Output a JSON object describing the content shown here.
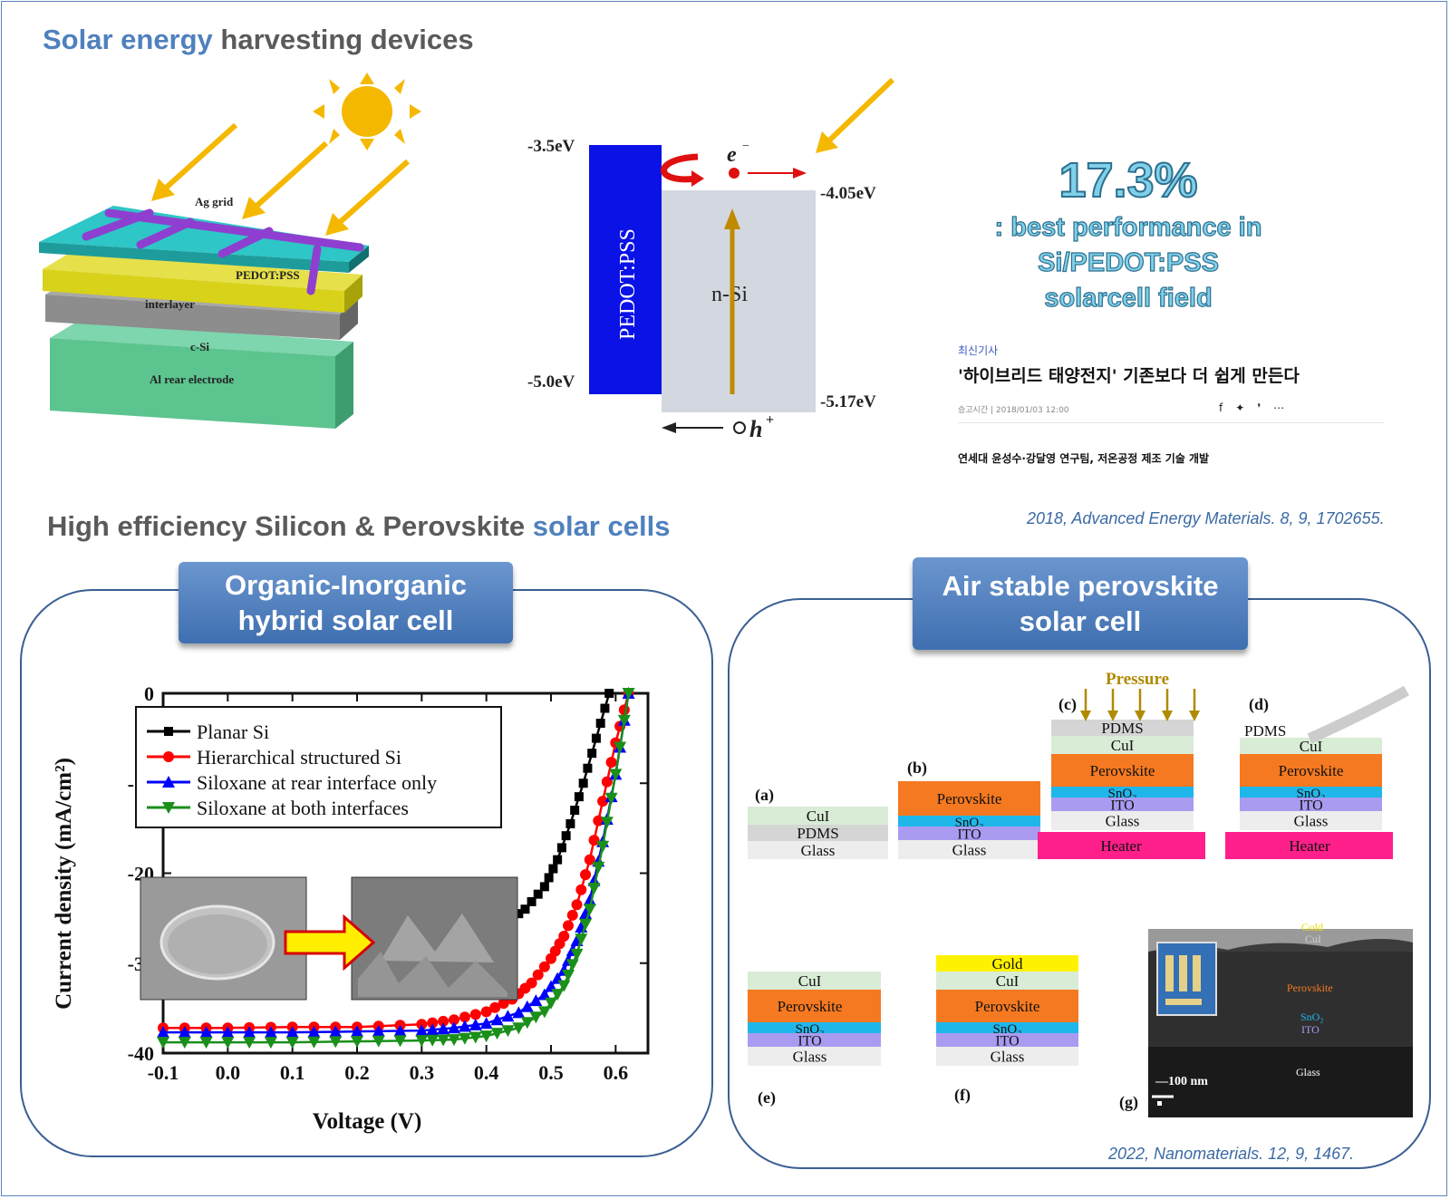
{
  "header": {
    "title_accent": "Solar energy",
    "title_rest": " harvesting devices"
  },
  "device": {
    "ag_grid": "Ag grid",
    "pedot": "PEDOT:PSS",
    "interlayer": "interlayer",
    "csi": "c-Si",
    "rear": "Al rear electrode",
    "colors": {
      "pedot": "#2ec6c6",
      "interlayer": "#d8d21a",
      "csi": "#8d8d8d",
      "rear": "#5cc48f",
      "grid": "#8e3fd0",
      "sun": "#f5b800"
    }
  },
  "band": {
    "pedot_label": "PEDOT:PSS",
    "nsi_label": "n-Si",
    "e_label": "e",
    "h_label": "h",
    "lvl1": "-3.5eV",
    "lvl2": "-5.0eV",
    "lvl3": "-4.05eV",
    "lvl4": "-5.17eV"
  },
  "highlight": {
    "pct": "17.3%",
    "line1": ": best performance in",
    "line2": "Si/PEDOT:PSS",
    "line3": "solarcell field"
  },
  "news": {
    "tag": "최신기사",
    "headline": "'하이브리드 태양전지' 기존보다 더 쉽게 만든다",
    "meta": "승고시간 | 2018/01/03 12:00",
    "sub": "연세대 윤성수·강달영 연구팀, 저온공정 제조 기술 개발"
  },
  "refs": {
    "ref1": "2018, Advanced Energy Materials. 8, 9, 1702655.",
    "ref2": "2022, Nanomaterials. 12, 9, 1467."
  },
  "section2": {
    "title_rest": "High efficiency Silicon & Perovskite ",
    "title_accent": "solar cells"
  },
  "panels": {
    "left_tab_line1": "Organic-Inorganic",
    "left_tab_line2": "hybrid solar cell",
    "right_tab_line1": "Air stable perovskite",
    "right_tab_line2": "solar cell"
  },
  "chart_data": {
    "type": "line",
    "xlabel": "Voltage (V)",
    "ylabel": "Current density (mA/cm²)",
    "xlim": [
      -0.1,
      0.65
    ],
    "ylim": [
      -40,
      0
    ],
    "x_ticks": [
      "-0.1",
      "0.0",
      "0.1",
      "0.2",
      "0.3",
      "0.4",
      "0.5",
      "0.6"
    ],
    "y_ticks": [
      "0",
      "-10",
      "-20",
      "-30",
      "-40"
    ],
    "legend_position": "top-left",
    "series": [
      {
        "name": "Planar Si",
        "color": "#000000",
        "marker": "square",
        "x": [
          -0.1,
          0.0,
          0.1,
          0.2,
          0.3,
          0.35,
          0.4,
          0.43,
          0.46,
          0.49,
          0.51,
          0.53,
          0.55,
          0.57,
          0.59
        ],
        "y": [
          -28,
          -28,
          -28,
          -28.1,
          -27.9,
          -27.5,
          -26.6,
          -25.5,
          -24,
          -21.5,
          -18.5,
          -14.5,
          -10,
          -5,
          0
        ]
      },
      {
        "name": "Hierarchical structured Si",
        "color": "#ff0000",
        "marker": "circle",
        "x": [
          -0.1,
          0.0,
          0.1,
          0.2,
          0.3,
          0.35,
          0.4,
          0.44,
          0.47,
          0.5,
          0.52,
          0.54,
          0.56,
          0.58,
          0.6,
          0.62
        ],
        "y": [
          -37.2,
          -37.2,
          -37.1,
          -37.1,
          -36.8,
          -36.3,
          -35.4,
          -34,
          -32.2,
          -29.5,
          -27,
          -23.5,
          -18.5,
          -12,
          -5.5,
          0
        ]
      },
      {
        "name": "Siloxane at rear interface only",
        "color": "#0000ff",
        "marker": "triangle-up",
        "x": [
          -0.1,
          0.0,
          0.1,
          0.2,
          0.3,
          0.35,
          0.4,
          0.45,
          0.49,
          0.52,
          0.54,
          0.56,
          0.58,
          0.6,
          0.62
        ],
        "y": [
          -37.7,
          -37.7,
          -37.7,
          -37.6,
          -37.5,
          -37.2,
          -36.7,
          -35.5,
          -33.5,
          -30.8,
          -27.5,
          -23,
          -16.5,
          -9,
          0
        ]
      },
      {
        "name": "Siloxane at both interfaces",
        "color": "#1a8f1a",
        "marker": "triangle-down",
        "x": [
          -0.1,
          0.0,
          0.1,
          0.2,
          0.3,
          0.35,
          0.4,
          0.45,
          0.49,
          0.52,
          0.54,
          0.56,
          0.58,
          0.6,
          0.62
        ],
        "y": [
          -38.8,
          -38.8,
          -38.8,
          -38.7,
          -38.6,
          -38.5,
          -38.1,
          -37.2,
          -35.4,
          -32.5,
          -29,
          -24,
          -17,
          -9,
          0
        ]
      }
    ]
  },
  "perovskite": {
    "a": "(a)",
    "b": "(b)",
    "c": "(c)",
    "d": "(d)",
    "e": "(e)",
    "f": "(f)",
    "g": "(g)",
    "pressure": "Pressure",
    "cui": "CuI",
    "pdms": "PDMS",
    "glass": "Glass",
    "perov": "Perovskite",
    "sno2": "SnO₂",
    "ito": "ITO",
    "heater": "Heater",
    "gold": "Gold",
    "scale": "100 nm",
    "sem_gold": "Gold",
    "sem_cui": "CuI",
    "sem_perov": "Perovskite",
    "sem_sno2": "SnO₂",
    "sem_ito": "ITO",
    "sem_glass": "Glass",
    "colors": {
      "cui": "#d9ecd6",
      "pdms": "#d5d5d5",
      "glass": "#ededed",
      "perov": "#f57921",
      "sno2": "#1fb7ea",
      "ito": "#a99bf0",
      "heater": "#ff1f8a",
      "gold": "#fff200"
    }
  }
}
